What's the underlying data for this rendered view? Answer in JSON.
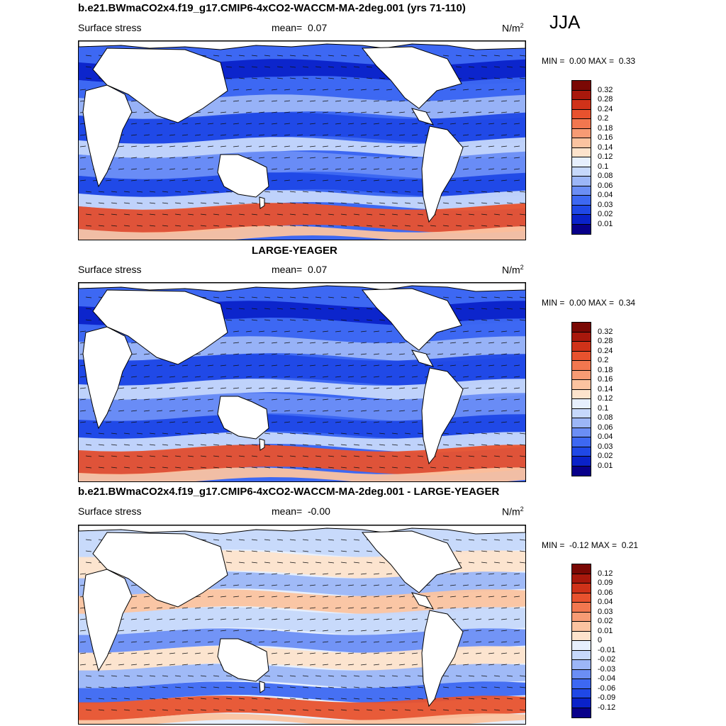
{
  "season": "JJA",
  "panels": [
    {
      "title": "b.e21.BWmaCO2x4.f19_g17.CMIP6-4xCO2-WACCM-MA-2deg.001 (yrs 71-110)",
      "field": "Surface stress",
      "mean_label": "mean=",
      "mean_value": "0.07",
      "units": "N/m",
      "units_sup": "2",
      "min_label": "MIN =",
      "min_value": "0.00",
      "max_label": "MAX =",
      "max_value": "0.33",
      "colorbar_labels": [
        "0.32",
        "0.28",
        "0.24",
        "0.2",
        "0.18",
        "0.16",
        "0.14",
        "0.12",
        "0.1",
        "0.08",
        "0.06",
        "0.04",
        "0.03",
        "0.02",
        "0.01"
      ]
    },
    {
      "title": "LARGE-YEAGER",
      "field": "Surface stress",
      "mean_label": "mean=",
      "mean_value": "0.07",
      "units": "N/m",
      "units_sup": "2",
      "min_label": "MIN =",
      "min_value": "0.00",
      "max_label": "MAX =",
      "max_value": "0.34",
      "colorbar_labels": [
        "0.32",
        "0.28",
        "0.24",
        "0.2",
        "0.18",
        "0.16",
        "0.14",
        "0.12",
        "0.1",
        "0.08",
        "0.06",
        "0.04",
        "0.03",
        "0.02",
        "0.01"
      ]
    },
    {
      "title": "b.e21.BWmaCO2x4.f19_g17.CMIP6-4xCO2-WACCM-MA-2deg.001 - LARGE-YEAGER",
      "field": "Surface stress",
      "mean_label": "mean=",
      "mean_value": "-0.00",
      "units": "N/m",
      "units_sup": "2",
      "min_label": "MIN =",
      "min_value": "-0.12",
      "max_label": "MAX =",
      "max_value": "0.21",
      "colorbar_labels": [
        "0.12",
        "0.09",
        "0.06",
        "0.04",
        "0.03",
        "0.02",
        "0.01",
        "0",
        "-0.01",
        "-0.02",
        "-0.03",
        "-0.04",
        "-0.06",
        "-0.09",
        "-0.12"
      ]
    }
  ],
  "colors": {
    "scale": [
      "#08008a",
      "#0a22c9",
      "#1f48e6",
      "#3d68f2",
      "#6b8ef5",
      "#9cb6f7",
      "#c6d8fb",
      "#e6effd",
      "#fde3cc",
      "#fbc3a0",
      "#f79b74",
      "#f2774f",
      "#e8522e",
      "#cf3219",
      "#a8180c",
      "#7a0804"
    ]
  }
}
